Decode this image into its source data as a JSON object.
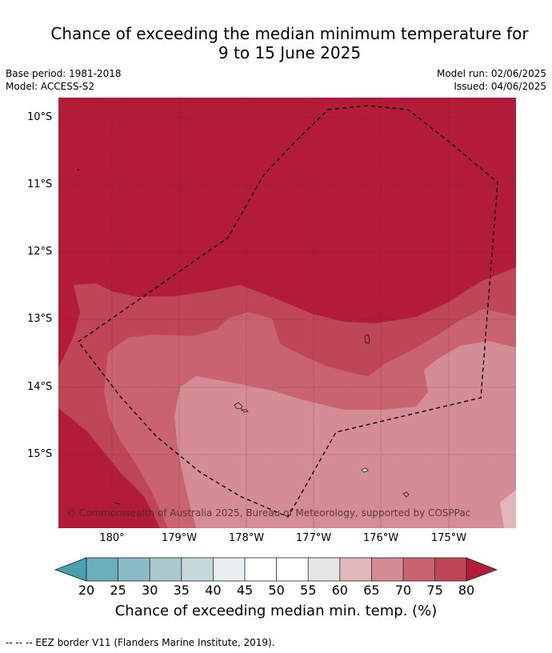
{
  "title_line1": "Chance of exceeding the median minimum temperature for",
  "title_line2": "9 to 15 June 2025",
  "base_period": "Base period: 1981-2018",
  "model": "Model: ACCESS-S2",
  "model_run": "Model run: 02/06/2025",
  "issued": "Issued: 04/06/2025",
  "lat_labels": [
    "10°S",
    "11°S",
    "12°S",
    "13°S",
    "14°S",
    "15°S"
  ],
  "lon_labels": [
    "180°",
    "179°W",
    "178°W",
    "177°W",
    "176°W",
    "175°W"
  ],
  "copyright": "© Commonwealth of Australia 2025, Bureau of Meteorology, supported by COSPPac",
  "colorbar": {
    "title": "Chance of exceeding median min. temp. (%)",
    "ticks": [
      "20",
      "25",
      "30",
      "35",
      "40",
      "45",
      "50",
      "55",
      "60",
      "65",
      "70",
      "75",
      "80"
    ],
    "colors": {
      "below_20": "#4a9fae",
      "20_25": "#6aaebb",
      "25_30": "#8bbcc6",
      "30_35": "#a9c9cf",
      "35_40": "#c8d9dd",
      "40_45": "#e8eef1",
      "45_50": "#ffffff",
      "50_55": "#ffffff",
      "55_60": "#e6e6e6",
      "60_65": "#e2b8bc",
      "65_70": "#d48c95",
      "70_75": "#c9636f",
      "75_80": "#bf4656",
      "above_80": "#b21c3a"
    }
  },
  "footnote": "--  --  -- EEZ border V11 (Flanders Marine Institute, 2019)."
}
